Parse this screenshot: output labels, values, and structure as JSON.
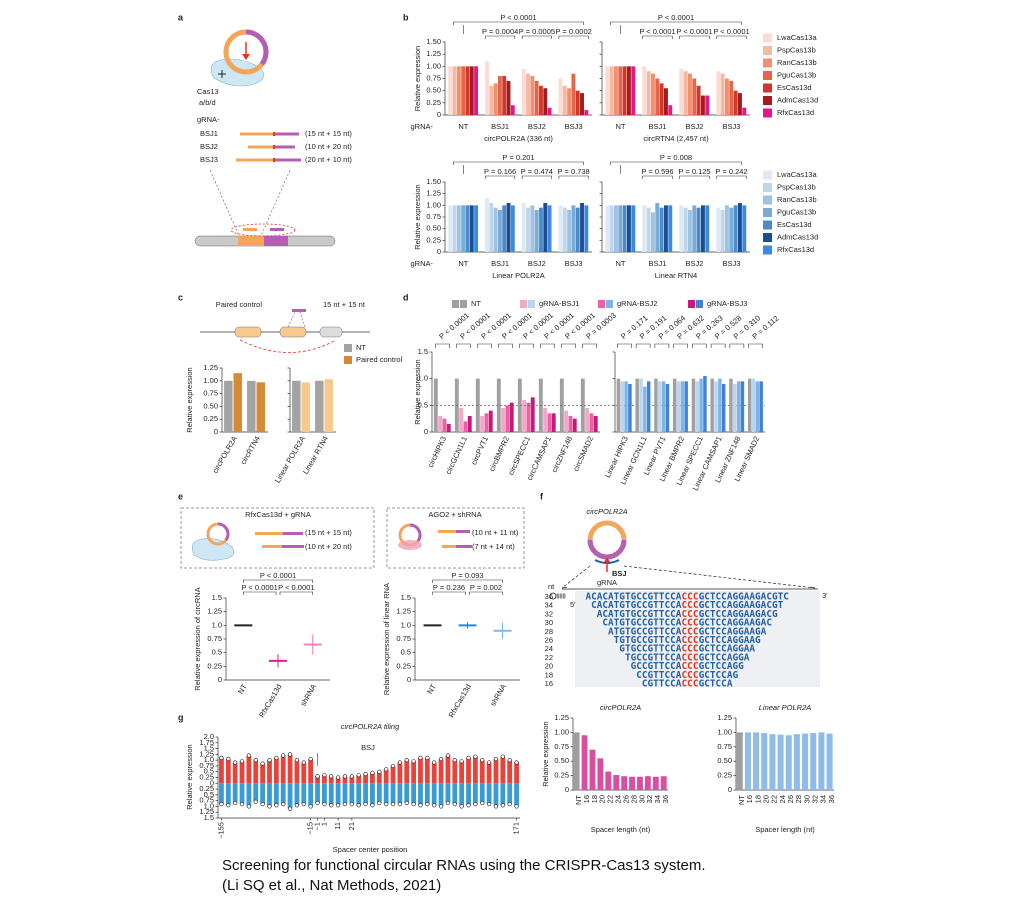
{
  "panel_labels": {
    "a": "a",
    "b": "b",
    "c": "c",
    "d": "d",
    "e": "e",
    "f": "f",
    "g": "g"
  },
  "a": {
    "cas13": "Cas13",
    "subtype": "a/b/d",
    "grna": "gRNA-",
    "guides": [
      {
        "name": "BSJ1",
        "design": "(15 nt + 15 nt)"
      },
      {
        "name": "BSJ2",
        "design": "(10 nt + 20 nt)"
      },
      {
        "name": "BSJ3",
        "design": "(20 nt + 10 nt)"
      }
    ]
  },
  "b": {
    "ylabel": "Relative expression",
    "grna": "gRNA-",
    "ylim": [
      0,
      1.5
    ],
    "yticks": [
      0,
      {
        "value": 0.25,
        "label": "0.25"
      },
      {
        "value": 0.5,
        "label": "0.50"
      },
      {
        "value": 0.75,
        "label": "0.75"
      },
      {
        "value": 1,
        "label": "1.00"
      },
      {
        "value": 1.25,
        "label": "1.25"
      },
      {
        "value": 1.5,
        "label": "1.50"
      }
    ],
    "series_top": [
      {
        "name": "LwaCas13a",
        "color": "#fbdcd2"
      },
      {
        "name": "PspCas13b",
        "color": "#f6b7a3"
      },
      {
        "name": "RanCas13b",
        "color": "#f0906f"
      },
      {
        "name": "PguCas13b",
        "color": "#e5654a"
      },
      {
        "name": "EsCas13d",
        "color": "#d2372a"
      },
      {
        "name": "AdmCas13d",
        "color": "#a31b1d"
      },
      {
        "name": "RfxCas13d",
        "color": "#e5158b"
      }
    ],
    "series_bottom": [
      {
        "name": "LwaCas13a",
        "color": "#dde9f5"
      },
      {
        "name": "PspCas13b",
        "color": "#bed5ec"
      },
      {
        "name": "RanCas13b",
        "color": "#9ec2e2"
      },
      {
        "name": "PguCas13b",
        "color": "#78acd7"
      },
      {
        "name": "EsCas13d",
        "color": "#4b8bc8"
      },
      {
        "name": "AdmCas13d",
        "color": "#1d4c93"
      },
      {
        "name": "RfxCas13d",
        "color": "#3a8ae0"
      }
    ],
    "charts": [
      {
        "subtitle": "circPOLR2A (336 nt)",
        "groups": [
          "NT",
          "BSJ1",
          "BSJ2",
          "BSJ3"
        ],
        "values": [
          [
            1,
            1,
            1,
            1,
            1,
            1,
            1
          ],
          [
            1.1,
            0.6,
            0.65,
            0.8,
            0.8,
            0.7,
            0.2
          ],
          [
            0.95,
            0.85,
            0.8,
            0.7,
            0.6,
            0.55,
            0.15
          ],
          [
            0.75,
            0.6,
            0.55,
            0.85,
            0.5,
            0.45,
            0.1
          ]
        ],
        "p_all": "P < 0.0001",
        "p_groups": [
          "P = 0.0004",
          "P = 0.0005",
          "P = 0.0002"
        ]
      },
      {
        "subtitle": "circRTN4 (2,457 nt)",
        "groups": [
          "NT",
          "BSJ1",
          "BSJ2",
          "BSJ3"
        ],
        "values": [
          [
            1,
            1,
            1,
            1,
            1,
            1,
            1
          ],
          [
            1,
            0.9,
            0.85,
            0.75,
            0.65,
            0.55,
            0.2
          ],
          [
            0.95,
            0.9,
            0.85,
            0.75,
            0.6,
            0.4,
            0.4
          ],
          [
            0.9,
            0.85,
            0.75,
            0.7,
            0.5,
            0.45,
            0.15
          ]
        ],
        "p_all": "P < 0.0001",
        "p_groups": [
          "P < 0.0001",
          "P < 0.0001",
          "P < 0.0001"
        ]
      },
      {
        "subtitle": "Linear POLR2A",
        "groups": [
          "NT",
          "BSJ1",
          "BSJ2",
          "BSJ3"
        ],
        "values": [
          [
            1,
            1,
            1,
            1,
            1,
            1,
            1
          ],
          [
            1.15,
            1.05,
            0.95,
            0.9,
            1,
            1.05,
            1
          ],
          [
            1.05,
            0.95,
            1,
            0.9,
            0.95,
            1.05,
            1
          ],
          [
            1,
            0.95,
            0.9,
            1,
            0.95,
            1.05,
            1
          ]
        ],
        "p_all": "P = 0.201",
        "p_groups": [
          "P = 0.166",
          "P = 0.474",
          "P = 0.738"
        ]
      },
      {
        "subtitle": "Linear RTN4",
        "groups": [
          "NT",
          "BSJ1",
          "BSJ2",
          "BSJ3"
        ],
        "values": [
          [
            1,
            1,
            1,
            1,
            1,
            1,
            1
          ],
          [
            1,
            0.95,
            0.85,
            1.05,
            0.95,
            1,
            1
          ],
          [
            1,
            0.95,
            0.9,
            1,
            0.95,
            1,
            1
          ],
          [
            0.95,
            0.9,
            1,
            0.95,
            1,
            1.05,
            1
          ]
        ],
        "p_all": "P = 0.008",
        "p_groups": [
          "P = 0.596",
          "P = 0.125",
          "P = 0.242"
        ]
      }
    ]
  },
  "c": {
    "paired_label": "Paired control",
    "design": "15 nt + 15 nt",
    "legend": [
      "NT",
      "Paired control"
    ],
    "ylabel": "Relative expression",
    "ylim": [
      0,
      1.25
    ],
    "yticks": [
      0,
      {
        "value": 0.25,
        "label": "0.25"
      },
      {
        "value": 0.5,
        "label": "0.50"
      },
      {
        "value": 0.75,
        "label": "0.75"
      },
      {
        "value": 1,
        "label": "1.00"
      },
      {
        "value": 1.25,
        "label": "1.25"
      }
    ],
    "charts": [
      {
        "colors": [
          "#a3a3a3",
          "#d58a38"
        ],
        "groups": [
          "circPOLR2A",
          "circRTN4"
        ],
        "values": [
          [
            1,
            1.15
          ],
          [
            1,
            0.97
          ]
        ]
      },
      {
        "colors": [
          "#a3a3a3",
          "#f7c98f"
        ],
        "groups": [
          "Linear POLR2A",
          "Linear RTN4"
        ],
        "values": [
          [
            1,
            0.97
          ],
          [
            1,
            1.03
          ]
        ]
      }
    ]
  },
  "d": {
    "legend": [
      "NT",
      "gRNA-BSJ1",
      "gRNA-BSJ2",
      "gRNA-BSJ3"
    ],
    "ylabel": "Relative expression",
    "ylim": [
      0,
      1.5
    ],
    "yticks": [
      0,
      {
        "value": 0.5,
        "label": "0.5"
      },
      {
        "value": 1,
        "label": "1.0"
      },
      {
        "value": 1.5,
        "label": "1.5"
      }
    ],
    "ref_line": 0.5,
    "charts": [
      {
        "colors": [
          "#a0a0a0",
          "#f4a7c9",
          "#ec60a6",
          "#c8197b"
        ],
        "groups": [
          "circHIPK3",
          "circGCN1L1",
          "circPVT1",
          "circBMPR2",
          "circSPECC1",
          "circCAMSAP1",
          "circZNF148",
          "circSMAD2"
        ],
        "values": [
          [
            1,
            0.3,
            0.25,
            0.15
          ],
          [
            1,
            0.45,
            0.2,
            0.3
          ],
          [
            1,
            0.3,
            0.35,
            0.4
          ],
          [
            1,
            0.45,
            0.5,
            0.55
          ],
          [
            1,
            0.6,
            0.55,
            0.65
          ],
          [
            1,
            0.45,
            0.35,
            0.35
          ],
          [
            1,
            0.4,
            0.3,
            0.25
          ],
          [
            1,
            0.45,
            0.35,
            0.3
          ]
        ],
        "p": [
          "P < 0.0001",
          "P < 0.0001",
          "P < 0.0001",
          "P < 0.0001",
          "P < 0.0001",
          "P < 0.0001",
          "P < 0.0001",
          "P = 0.0003"
        ]
      },
      {
        "colors": [
          "#a0a0a0",
          "#bad5ef",
          "#80b3e6",
          "#3f84d8"
        ],
        "groups": [
          "Linear HIPK3",
          "Linear GCN1L1",
          "Linear PVT1",
          "Linear BMPR2",
          "Linear SPECC1",
          "Linear CAMSAP1",
          "Linear ZNF148",
          "Linear SMAD2"
        ],
        "values": [
          [
            1,
            0.95,
            0.95,
            0.9
          ],
          [
            1,
            1,
            0.85,
            0.95
          ],
          [
            1,
            0.95,
            0.95,
            0.9
          ],
          [
            1,
            0.95,
            0.95,
            0.95
          ],
          [
            1,
            0.95,
            1,
            1.05
          ],
          [
            1,
            0.95,
            1,
            0.9
          ],
          [
            1,
            0.9,
            0.95,
            0.95
          ],
          [
            1,
            1,
            0.95,
            0.95
          ]
        ],
        "p": [
          "P = 0.171",
          "P = 0.191",
          "P = 0.064",
          "P = 0.632",
          "P = 0.263",
          "P = 0.528",
          "P = 0.310",
          "P = 0.112"
        ]
      }
    ]
  },
  "e": {
    "charts": [
      {
        "title": "RfxCas13d + gRNA",
        "designs": [
          "(15 nt + 15 nt)",
          "(10 nt + 20 nt)"
        ],
        "ylabel": "Relative expression of circRNA",
        "categories": [
          "NT",
          "RfxCas13d",
          "shRNA"
        ],
        "means": [
          1,
          0.35,
          0.65
        ],
        "sd": [
          0,
          0.12,
          0.18
        ],
        "colors": [
          "#222222",
          "#e0218a",
          "#f27fc0"
        ],
        "p_top": "P < 0.0001",
        "p_pairs": [
          "P < 0.0001",
          "P < 0.0001"
        ],
        "ylim": [
          0,
          1.5
        ],
        "yticks": [
          0,
          0.25,
          {
            "value": 0.5,
            "label": "0.5"
          },
          0.75,
          {
            "value": 1,
            "label": "1.0"
          },
          1.25,
          {
            "value": 1.5,
            "label": "1.5"
          }
        ]
      },
      {
        "title": "AGO2 + shRNA",
        "designs": [
          "(10 nt + 11 nt)",
          "(7 nt + 14 nt)"
        ],
        "ylabel": "Relative expression of linear RNA",
        "categories": [
          "NT",
          "RfxCas13d",
          "shRNA"
        ],
        "means": [
          1,
          1,
          0.9
        ],
        "sd": [
          0,
          0.06,
          0.15
        ],
        "colors": [
          "#222222",
          "#1e88d6",
          "#7fb9ec"
        ],
        "p_top": "P = 0.093",
        "p_pairs": [
          "P = 0.236",
          "P = 0.002"
        ],
        "ylim": [
          0,
          1.5
        ],
        "yticks": [
          0,
          0.25,
          {
            "value": 0.5,
            "label": "0.5"
          },
          0.75,
          {
            "value": 1,
            "label": "1.0"
          },
          1.25,
          {
            "value": 1.5,
            "label": "1.5"
          }
        ]
      }
    ]
  },
  "f": {
    "title": "circPOLR2A",
    "bsj": "BSJ",
    "grna": "gRNA",
    "nt": "nt",
    "five": "5′",
    "three": "3′",
    "sequences": [
      {
        "nt": "36",
        "left": "ACACATGTGCCGTTCCA",
        "junction": "CCC",
        "right": "GCTCCAGGAAGACGTC"
      },
      {
        "nt": "34",
        "left": "CACATGTGCCGTTCCA",
        "junction": "CCC",
        "right": "GCTCCAGGAAGACGT"
      },
      {
        "nt": "32",
        "left": "ACATGTGCCGTTCCA",
        "junction": "CCC",
        "right": "GCTCCAGGAAGACG"
      },
      {
        "nt": "30",
        "left": "CATGTGCCGTTCCA",
        "junction": "CCC",
        "right": "GCTCCAGGAAGAC"
      },
      {
        "nt": "28",
        "left": "ATGTGCCGTTCCA",
        "junction": "CCC",
        "right": "GCTCCAGGAAGA"
      },
      {
        "nt": "26",
        "left": "TGTGCCGTTCCA",
        "junction": "CCC",
        "right": "GCTCCAGGAAG"
      },
      {
        "nt": "24",
        "left": "GTGCCGTTCCA",
        "junction": "CCC",
        "right": "GCTCCAGGAA"
      },
      {
        "nt": "22",
        "left": "TGCCGTTCCA",
        "junction": "CCC",
        "right": "GCTCCAGGA"
      },
      {
        "nt": "20",
        "left": "GCCGTTCCA",
        "junction": "CCC",
        "right": "GCTCCAGG"
      },
      {
        "nt": "18",
        "left": "CCGTTCCA",
        "junction": "CCC",
        "right": "GCTCCAG"
      },
      {
        "nt": "16",
        "left": "CGTTCCA",
        "junction": "CCC",
        "right": "GCTCCA"
      }
    ],
    "ylabel": "Relative expression",
    "xlabel": "Spacer length (nt)",
    "ylim": [
      0,
      1.25
    ],
    "yticks": [
      0,
      {
        "value": 0.25,
        "label": "0.25"
      },
      {
        "value": 0.5,
        "label": "0.50"
      },
      {
        "value": 0.75,
        "label": "0.75"
      },
      {
        "value": 1,
        "label": "1.00"
      },
      {
        "value": 1.25,
        "label": "1.25"
      }
    ],
    "charts": [
      {
        "title": "circPOLR2A",
        "title_color": "#d84fa0",
        "colors": [
          "#9e9e9e",
          "#d84fa0"
        ],
        "categories": [
          "NT",
          "16",
          "18",
          "20",
          "22",
          "24",
          "26",
          "28",
          "30",
          "32",
          "34",
          "36"
        ],
        "values": [
          1,
          0.95,
          0.7,
          0.55,
          0.32,
          0.26,
          0.24,
          0.23,
          0.23,
          0.24,
          0.23,
          0.24
        ]
      },
      {
        "title": "Linear POLR2A",
        "title_color": "#6fa6e3",
        "colors": [
          "#9e9e9e",
          "#8fbbe9"
        ],
        "categories": [
          "NT",
          "16",
          "18",
          "20",
          "22",
          "24",
          "26",
          "28",
          "30",
          "32",
          "34",
          "36"
        ],
        "values": [
          1,
          1,
          1,
          0.99,
          0.97,
          0.96,
          0.95,
          0.97,
          0.98,
          0.99,
          1,
          0.98
        ]
      }
    ]
  },
  "g": {
    "title": "circPOLR2A tiling",
    "bsj": "BSJ",
    "ylabel": "Relative expression",
    "xlabel": "Spacer center position",
    "colors": [
      "#e8423a",
      "#3a9ad6"
    ],
    "ylim": [
      -1.5,
      2
    ],
    "yticks": [
      {
        "value": 2,
        "label": "2.0"
      },
      1.75,
      1.5,
      1.25,
      {
        "value": 1,
        "label": "1.0"
      },
      0.75,
      0.5,
      0.25,
      0,
      {
        "value": -0.25,
        "label": "0.25"
      },
      {
        "value": -0.5,
        "label": "0.5"
      },
      {
        "value": -0.75,
        "label": "0.75"
      },
      {
        "value": -1,
        "label": "1.0"
      },
      {
        "value": -1.25,
        "label": "1.25"
      },
      {
        "value": -1.5,
        "label": "1.5"
      }
    ],
    "categories": [
      "−155",
      null,
      null,
      null,
      null,
      null,
      null,
      null,
      null,
      null,
      null,
      null,
      null,
      "−15",
      "−1",
      "1",
      null,
      "11",
      null,
      "21",
      null,
      null,
      null,
      null,
      null,
      null,
      null,
      null,
      null,
      null,
      null,
      null,
      null,
      null,
      null,
      null,
      null,
      null,
      null,
      null,
      null,
      null,
      null,
      "171"
    ],
    "circ_values": [
      1.1,
      1.05,
      0.9,
      0.95,
      1.2,
      1.0,
      0.85,
      1.0,
      1.1,
      1.2,
      1.25,
      1.0,
      0.9,
      1.05,
      0.3,
      0.35,
      0.3,
      0.25,
      0.3,
      0.3,
      0.35,
      0.4,
      0.45,
      0.5,
      0.6,
      0.75,
      0.9,
      1.0,
      0.95,
      1.1,
      1.1,
      0.9,
      1.05,
      1.2,
      1.0,
      0.95,
      1.1,
      1.15,
      1.0,
      0.9,
      1.05,
      1.15,
      1.0,
      0.9
    ],
    "linear_values": [
      -0.9,
      -0.95,
      -0.85,
      -0.9,
      -1.0,
      -0.8,
      -0.9,
      -1.0,
      -0.95,
      -0.9,
      -1.1,
      -0.95,
      -0.9,
      -1.0,
      -0.85,
      -0.9,
      -0.95,
      -0.95,
      -0.9,
      -0.9,
      -0.95,
      -0.9,
      -0.95,
      -0.85,
      -0.9,
      -0.9,
      -0.9,
      -0.85,
      -0.9,
      -0.95,
      -0.9,
      -0.95,
      -1.0,
      -0.85,
      -0.9,
      -1.0,
      -0.95,
      -0.9,
      -0.85,
      -0.9,
      -1.0,
      -0.95,
      -0.9,
      -1.0
    ]
  },
  "caption": [
    "Screening for functional circular RNAs using the CRISPR-Cas13 system.",
    "(Li SQ et al., Nat Methods, 2021)"
  ]
}
